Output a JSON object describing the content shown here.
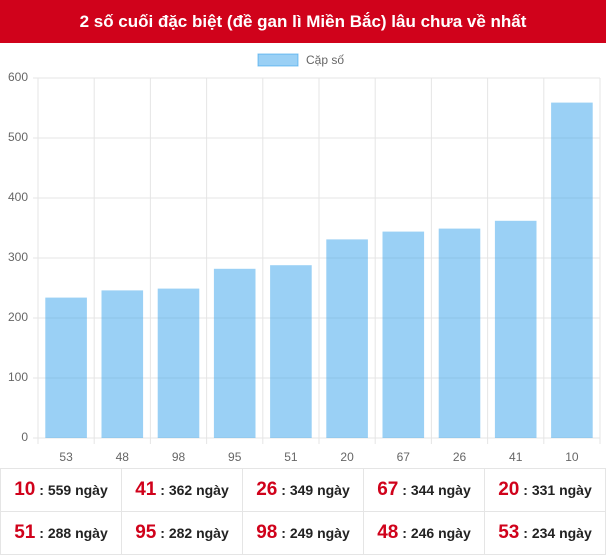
{
  "header": {
    "title": "2 số cuối đặc biệt (đề gan lì Miền Bắc) lâu chưa về nhất"
  },
  "chart_data": {
    "type": "bar",
    "legend": "Cặp số",
    "color": "rgba(54,162,235,0.5)",
    "categories": [
      "53",
      "48",
      "98",
      "95",
      "51",
      "20",
      "67",
      "26",
      "41",
      "10"
    ],
    "values": [
      234,
      246,
      249,
      282,
      288,
      331,
      344,
      349,
      362,
      559
    ],
    "ylim": [
      0,
      600
    ],
    "yticks": [
      0,
      100,
      200,
      300,
      400,
      500,
      600
    ],
    "grid": true
  },
  "table": {
    "rows": [
      [
        [
          "10",
          ": 559 ngày"
        ],
        [
          "41",
          ": 362 ngày"
        ],
        [
          "26",
          ": 349 ngày"
        ],
        [
          "67",
          ": 344 ngày"
        ],
        [
          "20",
          ": 331 ngày"
        ]
      ],
      [
        [
          "51",
          ": 288 ngày"
        ],
        [
          "95",
          ": 282 ngày"
        ],
        [
          "98",
          ": 249 ngày"
        ],
        [
          "48",
          ": 246 ngày"
        ],
        [
          "53",
          ": 234 ngày"
        ]
      ]
    ]
  }
}
